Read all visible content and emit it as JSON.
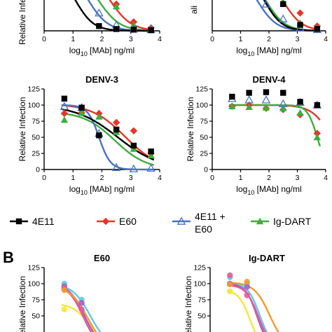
{
  "panel_b_label": "B",
  "colors": {
    "4E11": "#000000",
    "E60": "#e8352a",
    "4E11 + E60": "#4a72c4",
    "Ig-DART": "#3cae3c",
    "yellow": "#f2e836",
    "cyan": "#5fcbe3",
    "purple": "#a661c2",
    "pink": "#e55a9a",
    "orange": "#f29a2e"
  },
  "legend": [
    {
      "label": "4E11",
      "marker": "square",
      "color": "#000000"
    },
    {
      "label": "E60",
      "marker": "diamond",
      "color": "#e8352a"
    },
    {
      "label": "4E11 + E60",
      "label_lines": [
        "4E11 +",
        "E60"
      ],
      "marker": "triangle-open",
      "color": "#4a72c4"
    },
    {
      "label": "Ig-DART",
      "marker": "triangle",
      "color": "#3cae3c"
    }
  ],
  "chart_data": [
    {
      "panel": "top-left (partially cropped)",
      "type": "line",
      "title": "",
      "xlabel": "log10 [MAb] ng/ml",
      "ylabel": "Relative Infection",
      "xlim": [
        0,
        4
      ],
      "ylim": [
        0,
        125
      ],
      "xticks": [
        0,
        1,
        2,
        3,
        4
      ],
      "yticks": [],
      "visible_from_y": 52,
      "series": [
        {
          "name": "4E11",
          "marker": "square",
          "color": "#000000",
          "points": [
            [
              1.9,
              8
            ],
            [
              2.5,
              3
            ],
            [
              3.1,
              2
            ],
            [
              3.7,
              1
            ]
          ],
          "curve": {
            "bottom": 0,
            "top": 100,
            "ec50": 1.1,
            "hill": 1.4
          }
        },
        {
          "name": "E60",
          "marker": "diamond",
          "color": "#e8352a",
          "points": [
            [
              2.5,
              45
            ],
            [
              3.1,
              15
            ],
            [
              3.7,
              5
            ]
          ],
          "curve": {
            "bottom": 0,
            "top": 100,
            "ec50": 2.3,
            "hill": 1.2
          }
        },
        {
          "name": "4E11 + E60",
          "marker": "triangle-open",
          "color": "#4a72c4",
          "points": [
            [
              1.9,
              30
            ],
            [
              2.5,
              10
            ],
            [
              3.1,
              3
            ],
            [
              3.7,
              2
            ]
          ],
          "curve": {
            "bottom": 0,
            "top": 100,
            "ec50": 1.55,
            "hill": 1.3
          }
        },
        {
          "name": "Ig-DART",
          "marker": "triangle",
          "color": "#3cae3c",
          "points": [
            [
              2.5,
              41
            ],
            [
              3.1,
              10
            ],
            [
              3.7,
              5
            ]
          ],
          "curve": {
            "bottom": 0,
            "top": 100,
            "ec50": 1.9,
            "hill": 1.2
          }
        }
      ]
    },
    {
      "panel": "top-right (partially cropped)",
      "type": "line",
      "title": "",
      "xlabel": "log10 [MAb] ng/ml",
      "ylabel": "",
      "ylabel_visible": "ali",
      "xlim": [
        0,
        4
      ],
      "ylim": [
        0,
        125
      ],
      "xticks": [
        0,
        1,
        2,
        3,
        4
      ],
      "yticks": [],
      "visible_from_y": 52,
      "series": [
        {
          "name": "4E11",
          "marker": "square",
          "color": "#000000",
          "points": [
            [
              1.9,
              70
            ],
            [
              2.5,
              45
            ],
            [
              3.1,
              10
            ],
            [
              3.7,
              3
            ]
          ],
          "curve": {
            "bottom": 0,
            "top": 100,
            "ec50": 1.85,
            "hill": 1.4
          }
        },
        {
          "name": "E60",
          "marker": "diamond",
          "color": "#e8352a",
          "points": [
            [
              2.5,
              75
            ],
            [
              3.1,
              30
            ],
            [
              3.7,
              8
            ]
          ],
          "curve": {
            "bottom": 0,
            "top": 100,
            "ec50": 2.5,
            "hill": 1.3
          }
        },
        {
          "name": "4E11 + E60",
          "marker": "triangle-open",
          "color": "#4a72c4",
          "points": [
            [
              1.9,
              45
            ],
            [
              2.5,
              20
            ],
            [
              3.1,
              5
            ],
            [
              3.7,
              2
            ]
          ],
          "curve": {
            "bottom": 0,
            "top": 100,
            "ec50": 1.6,
            "hill": 1.3
          }
        },
        {
          "name": "Ig-DART",
          "marker": "triangle",
          "color": "#3cae3c",
          "points": [
            [
              2.5,
              48
            ],
            [
              3.1,
              13
            ],
            [
              3.7,
              4
            ]
          ],
          "curve": {
            "bottom": 0,
            "top": 100,
            "ec50": 1.9,
            "hill": 1.3
          }
        }
      ]
    },
    {
      "panel": "DENV-3",
      "type": "line",
      "title": "DENV-3",
      "xlabel": "log10 [MAb] ng/ml",
      "ylabel": "Relative Infection",
      "xlim": [
        0,
        4
      ],
      "ylim": [
        0,
        125
      ],
      "xticks": [
        0,
        1,
        2,
        3,
        4
      ],
      "yticks": [
        0,
        25,
        50,
        75,
        100,
        125
      ],
      "series": [
        {
          "name": "4E11",
          "marker": "square",
          "color": "#000000",
          "points": [
            [
              0.7,
              110
            ],
            [
              1.3,
              96
            ],
            [
              1.9,
              53
            ],
            [
              2.5,
              62
            ],
            [
              3.1,
              37
            ],
            [
              3.7,
              28
            ]
          ],
          "curve": {
            "bottom": 0,
            "top": 100,
            "ec50": 2.55,
            "hill": 0.6
          }
        },
        {
          "name": "E60",
          "marker": "diamond",
          "color": "#e8352a",
          "points": [
            [
              0.7,
              87
            ],
            [
              1.3,
              88
            ],
            [
              1.9,
              87
            ],
            [
              2.5,
              73
            ],
            [
              3.1,
              60
            ],
            [
              3.7,
              25
            ]
          ],
          "curve": {
            "bottom": 0,
            "top": 102,
            "ec50": 2.8,
            "hill": 0.75
          }
        },
        {
          "name": "4E11 + E60",
          "marker": "triangle-open",
          "color": "#4a72c4",
          "points": [
            [
              0.7,
              98
            ],
            [
              1.3,
              96
            ],
            [
              1.9,
              56
            ],
            [
              2.5,
              3
            ],
            [
              3.1,
              1
            ],
            [
              3.7,
              2
            ]
          ],
          "curve": {
            "bottom": 0,
            "top": 100,
            "ec50": 1.9,
            "hill": 2.2
          }
        },
        {
          "name": "Ig-DART",
          "marker": "triangle",
          "color": "#3cae3c",
          "points": [
            [
              0.7,
              77
            ],
            [
              1.3,
              88
            ],
            [
              1.9,
              82
            ],
            [
              2.5,
              58
            ],
            [
              3.1,
              32
            ],
            [
              3.7,
              22
            ]
          ],
          "curve": {
            "bottom": 0,
            "top": 90,
            "ec50": 2.45,
            "hill": 0.8
          }
        }
      ]
    },
    {
      "panel": "DENV-4",
      "type": "line",
      "title": "DENV-4",
      "xlabel": "log10 [MAb] ng/ml",
      "ylabel": "Relative Infection",
      "xlim": [
        0,
        4
      ],
      "ylim": [
        0,
        125
      ],
      "xticks": [
        0,
        1,
        2,
        3,
        4
      ],
      "yticks": [
        0,
        25,
        50,
        75,
        100,
        125
      ],
      "series": [
        {
          "name": "4E11",
          "marker": "square",
          "color": "#000000",
          "points": [
            [
              0.7,
              113
            ],
            [
              1.3,
              119
            ],
            [
              1.9,
              120
            ],
            [
              2.5,
              119
            ],
            [
              3.1,
              105
            ],
            [
              3.7,
              100
            ]
          ],
          "curve": null
        },
        {
          "name": "E60",
          "marker": "diamond",
          "color": "#e8352a",
          "points": [
            [
              0.7,
              98
            ],
            [
              1.3,
              100
            ],
            [
              1.9,
              95
            ],
            [
              2.5,
              93
            ],
            [
              3.1,
              85
            ],
            [
              3.7,
              56
            ]
          ],
          "curve": {
            "bottom": 0,
            "top": 100,
            "ec50": 4.2,
            "hill": 1.3
          }
        },
        {
          "name": "4E11 + E60",
          "marker": "triangle-open",
          "color": "#4a72c4",
          "points": [
            [
              0.7,
              110
            ],
            [
              1.3,
              108
            ],
            [
              1.9,
              108
            ],
            [
              2.5,
              102
            ],
            [
              3.1,
              104
            ],
            [
              3.7,
              100
            ]
          ],
          "curve": null
        },
        {
          "name": "Ig-DART",
          "marker": "triangle",
          "color": "#3cae3c",
          "points": [
            [
              0.7,
              98
            ],
            [
              1.3,
              97
            ],
            [
              1.9,
              96
            ],
            [
              2.5,
              95
            ],
            [
              3.1,
              88
            ],
            [
              3.7,
              50
            ]
          ],
          "curve": {
            "bottom": 0,
            "top": 100,
            "ec50": 3.7,
            "hill": 2.5
          }
        }
      ]
    },
    {
      "panel": "E60 (panel B, cropped)",
      "type": "line",
      "title": "E60",
      "xlabel": "",
      "ylabel": "Relative Infection",
      "xlim": [
        0,
        4
      ],
      "ylim": [
        0,
        125
      ],
      "xticks": [],
      "yticks": [
        50,
        75,
        100,
        125
      ],
      "series": [
        {
          "name": "",
          "marker": "circle",
          "color": "#f2e836",
          "points": [
            [
              0.7,
              60
            ]
          ],
          "curve": {
            "bottom": 0,
            "top": 70,
            "ec50": 1.6,
            "hill": 1.4
          }
        },
        {
          "name": "",
          "marker": "circle",
          "color": "#5fcbe3",
          "points": [
            [
              0.7,
              100
            ],
            [
              1.3,
              75
            ]
          ],
          "curve": {
            "bottom": 0,
            "top": 100,
            "ec50": 1.6,
            "hill": 1.4
          }
        },
        {
          "name": "",
          "marker": "circle",
          "color": "#a661c2",
          "points": [
            [
              0.7,
              96
            ],
            [
              1.3,
              70
            ]
          ],
          "curve": {
            "bottom": 0,
            "top": 100,
            "ec50": 1.4,
            "hill": 1.6
          }
        },
        {
          "name": "",
          "marker": "circle",
          "color": "#e55a9a",
          "points": [
            [
              0.7,
              93
            ],
            [
              1.3,
              60
            ]
          ],
          "curve": {
            "bottom": 0,
            "top": 98,
            "ec50": 1.35,
            "hill": 1.7
          }
        },
        {
          "name": "",
          "marker": "circle",
          "color": "#f29a2e",
          "points": [
            [
              0.7,
              90
            ]
          ],
          "curve": {
            "bottom": 0,
            "top": 95,
            "ec50": 1.5,
            "hill": 1.5
          }
        }
      ]
    },
    {
      "panel": "Ig-DART (panel B, cropped)",
      "type": "line",
      "title": "Ig-DART",
      "xlabel": "",
      "ylabel": "Relative Infection",
      "xlim": [
        0,
        4
      ],
      "ylim": [
        0,
        125
      ],
      "xticks": [],
      "yticks": [
        50,
        75,
        100,
        125
      ],
      "series": [
        {
          "name": "",
          "marker": "circle",
          "color": "#f2e836",
          "points": [
            [
              0.7,
              88
            ]
          ],
          "curve": {
            "bottom": 0,
            "top": 90,
            "ec50": 1.4,
            "hill": 2.2
          }
        },
        {
          "name": "",
          "marker": "circle",
          "color": "#5fcbe3",
          "points": [
            [
              0.7,
              110
            ],
            [
              1.3,
              100
            ]
          ],
          "curve": {
            "bottom": 0,
            "top": 102,
            "ec50": 1.75,
            "hill": 2.0
          }
        },
        {
          "name": "",
          "marker": "circle",
          "color": "#a661c2",
          "points": [
            [
              0.7,
              100
            ],
            [
              1.3,
              95
            ]
          ],
          "curve": {
            "bottom": 0,
            "top": 100,
            "ec50": 1.65,
            "hill": 2.2
          }
        },
        {
          "name": "",
          "marker": "circle",
          "color": "#e55a9a",
          "points": [
            [
              0.7,
              113
            ],
            [
              1.3,
              82
            ]
          ],
          "curve": {
            "bottom": 0,
            "top": 98,
            "ec50": 1.7,
            "hill": 2.0
          }
        },
        {
          "name": "",
          "marker": "circle",
          "color": "#f29a2e",
          "points": [
            [
              0.7,
              99
            ],
            [
              1.3,
              103
            ]
          ],
          "curve": {
            "bottom": 0,
            "top": 102,
            "ec50": 2.1,
            "hill": 1.6
          }
        }
      ]
    }
  ]
}
